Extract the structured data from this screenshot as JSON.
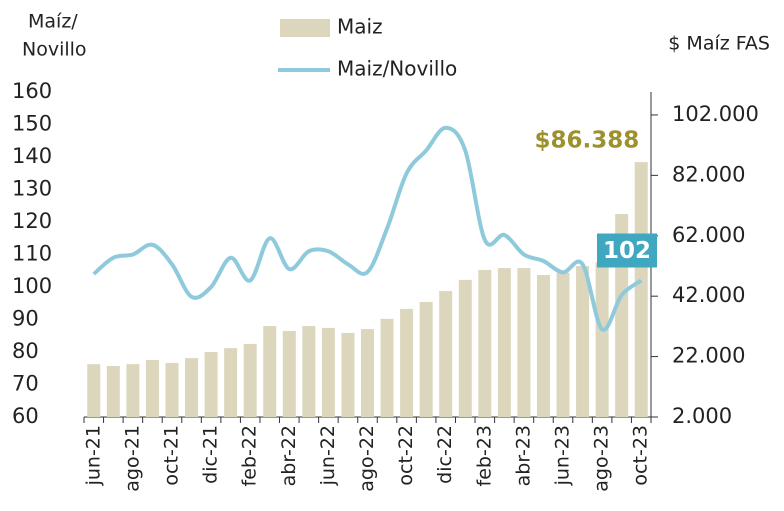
{
  "chart_data": {
    "type": "bar_line",
    "ylabel": [
      "Maíz/",
      "Novillo"
    ],
    "y2label": "$ Maíz FAS",
    "categories": [
      "jun-21",
      null,
      "ago-21",
      null,
      "oct-21",
      null,
      "dic-21",
      null,
      "feb-22",
      null,
      "abr-22",
      null,
      "jun-22",
      null,
      "ago-22",
      null,
      "oct-22",
      null,
      "dic-22",
      null,
      "feb-23",
      null,
      "abr-23",
      null,
      "jun-23",
      null,
      "ago-23",
      null,
      "oct-23"
    ],
    "series": [
      {
        "name": "Maiz",
        "type": "bar",
        "axis": "y2",
        "color": "#dcd6bd",
        "values": [
          19500,
          18900,
          19500,
          20900,
          19900,
          21500,
          23500,
          24800,
          26200,
          32100,
          30500,
          32100,
          31500,
          29800,
          31100,
          34500,
          37800,
          40100,
          43700,
          47400,
          50700,
          51300,
          51300,
          49000,
          49700,
          52000,
          53300,
          69200,
          86388
        ],
        "value_labels": [
          null,
          null,
          null,
          null,
          null,
          null,
          null,
          null,
          null,
          null,
          null,
          null,
          null,
          null,
          null,
          null,
          null,
          null,
          null,
          null,
          null,
          null,
          null,
          null,
          null,
          null,
          null,
          null,
          "$86.388"
        ],
        "label_color": "#9c912c"
      },
      {
        "name": "Maiz/Novillo",
        "type": "line",
        "axis": "y",
        "color": "#8ecadb",
        "values": [
          104,
          109,
          110,
          113,
          107,
          97,
          100,
          109,
          102,
          115,
          105.5,
          111,
          111,
          107,
          104.6,
          118,
          135,
          142,
          149,
          142,
          114.5,
          116,
          110,
          108,
          104.5,
          107,
          87,
          97.5,
          102
        ],
        "value_labels": [
          null,
          null,
          null,
          null,
          null,
          null,
          null,
          null,
          null,
          null,
          null,
          null,
          null,
          null,
          null,
          null,
          null,
          null,
          null,
          null,
          null,
          null,
          null,
          null,
          null,
          null,
          null,
          null,
          "102"
        ],
        "label_color": "#3fa7c0"
      }
    ],
    "ylim": [
      60,
      160
    ],
    "yticks": [
      60,
      70,
      80,
      90,
      100,
      110,
      120,
      130,
      140,
      150,
      160
    ],
    "y2lim": [
      2000,
      109600
    ],
    "y2ticks": [
      {
        "value": 2000,
        "label": "2.000"
      },
      {
        "value": 22000,
        "label": "22.000"
      },
      {
        "value": 42000,
        "label": "42.000"
      },
      {
        "value": 62000,
        "label": "62.000"
      },
      {
        "value": 82000,
        "label": "82.000"
      },
      {
        "value": 102000,
        "label": "102.000"
      }
    ]
  }
}
